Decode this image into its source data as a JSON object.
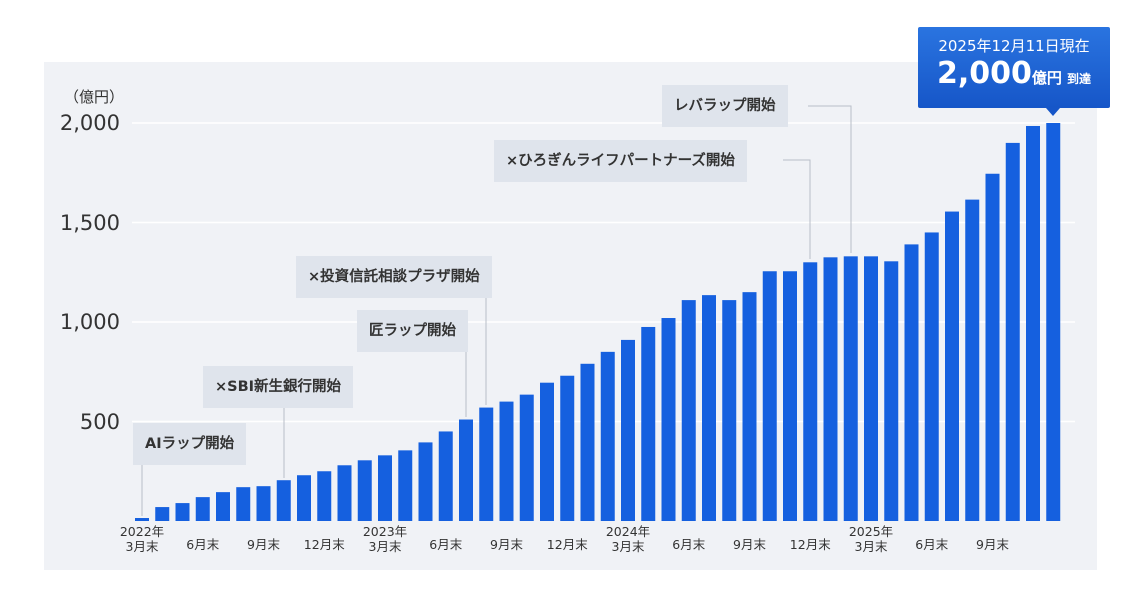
{
  "chart_data": {
    "type": "bar",
    "y_unit": "（億円）",
    "categories": [
      "2022年\n3月末",
      null,
      null,
      "6月末",
      null,
      null,
      "9月末",
      null,
      null,
      "12月末",
      null,
      null,
      "2023年\n3月末",
      null,
      null,
      "6月末",
      null,
      null,
      "9月末",
      null,
      null,
      "12月末",
      null,
      null,
      "2024年\n3月末",
      null,
      null,
      "6月末",
      null,
      null,
      "9月末",
      null,
      null,
      "12月末",
      null,
      null,
      "2025年\n3月末",
      null,
      null,
      "6月末",
      null,
      null,
      "9月末",
      null,
      null,
      null
    ],
    "values": [
      15,
      70,
      90,
      120,
      145,
      170,
      175,
      205,
      230,
      250,
      280,
      305,
      330,
      355,
      395,
      450,
      510,
      570,
      600,
      635,
      695,
      730,
      790,
      850,
      910,
      975,
      1020,
      1110,
      1135,
      1110,
      1150,
      1255,
      1255,
      1300,
      1325,
      1330,
      1330,
      1305,
      1390,
      1450,
      1555,
      1615,
      1745,
      1900,
      1985,
      2000
    ],
    "color": "#1560df",
    "ylim": [
      0,
      2000
    ],
    "yticks": [
      {
        "value": 500,
        "label": "500"
      },
      {
        "value": 1000,
        "label": "1,000"
      },
      {
        "value": 1500,
        "label": "1,500"
      },
      {
        "value": 2000,
        "label": "2,000"
      }
    ],
    "grid": true,
    "annotations": [
      "AIラップ開始",
      "×SBI新生銀行開始",
      "匠ラップ開始",
      "×投資信託相談プラザ開始",
      "×ひろぎんライフパートナーズ開始",
      "レバラップ開始"
    ],
    "badge": {
      "date": "2025年12月11日現在",
      "amount": "2,000",
      "unit": "億円",
      "suffix": "到達"
    }
  }
}
